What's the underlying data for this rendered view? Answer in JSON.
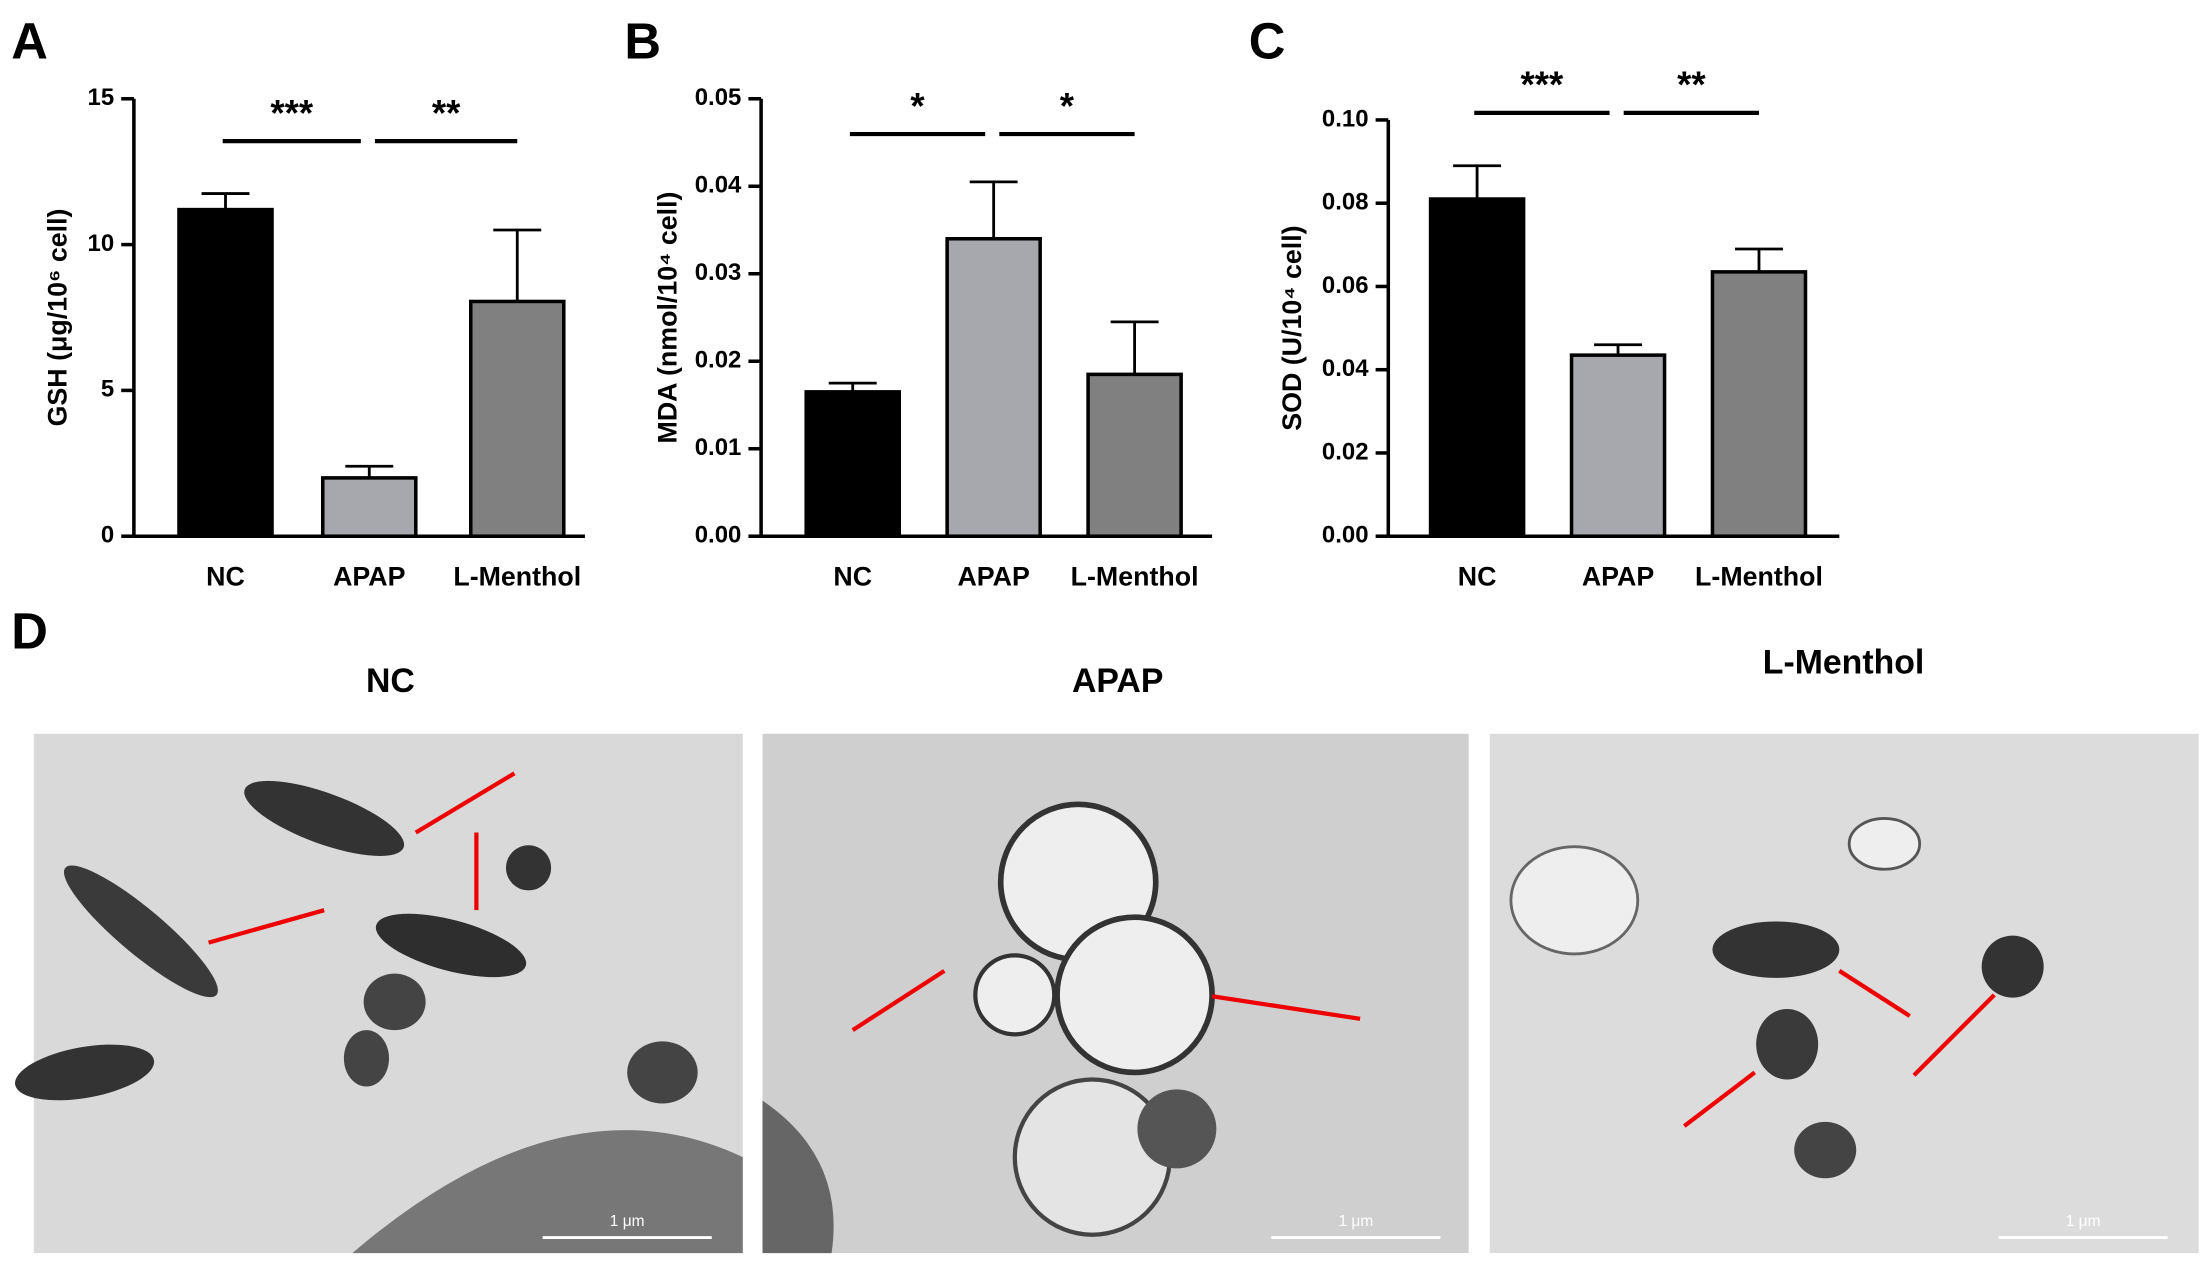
{
  "chart_data": [
    {
      "type": "bar",
      "panel": "A",
      "ylabel": "GSH (μg/10⁶ cell)",
      "categories": [
        "NC",
        "APAP",
        "L-Menthol"
      ],
      "values": [
        11.2,
        2.0,
        8.05
      ],
      "errors": [
        0.55,
        0.4,
        2.45
      ],
      "colors": [
        "#000000",
        "#a7a7ae",
        "#808080"
      ],
      "ylim": [
        0,
        15
      ],
      "yticks": [
        0,
        5,
        10,
        15
      ],
      "annotations": [
        {
          "text": "***",
          "span": [
            0,
            1
          ]
        },
        {
          "text": "**",
          "span": [
            1,
            2
          ]
        }
      ]
    },
    {
      "type": "bar",
      "panel": "B",
      "ylabel": "MDA (nmol/10⁴ cell)",
      "categories": [
        "NC",
        "APAP",
        "L-Menthol"
      ],
      "values": [
        0.0165,
        0.034,
        0.0185
      ],
      "errors": [
        0.001,
        0.0065,
        0.006
      ],
      "colors": [
        "#000000",
        "#a7a7ae",
        "#808080"
      ],
      "ylim": [
        0,
        0.05
      ],
      "yticks": [
        {
          "value": 0,
          "label": "0.00"
        },
        0.01,
        0.02,
        0.03,
        0.04,
        0.05
      ],
      "annotations": [
        {
          "text": "*",
          "span": [
            0,
            1
          ]
        },
        {
          "text": "*",
          "span": [
            1,
            2
          ]
        }
      ]
    },
    {
      "type": "bar",
      "panel": "C",
      "ylabel": "SOD (U/10⁴ cell)",
      "categories": [
        "NC",
        "APAP",
        "L-Menthol"
      ],
      "values": [
        0.081,
        0.0435,
        0.0635
      ],
      "errors": [
        0.008,
        0.0025,
        0.0055
      ],
      "colors": [
        "#000000",
        "#a7a7ae",
        "#808080"
      ],
      "ylim": [
        0,
        0.1
      ],
      "yticks": [
        {
          "value": 0,
          "label": "0.00"
        },
        0.02,
        0.04,
        0.06,
        0.08,
        {
          "value": 0.1,
          "label": "0.10"
        }
      ],
      "annotations": [
        {
          "text": "***",
          "span": [
            0,
            1
          ]
        },
        {
          "text": "**",
          "span": [
            1,
            2
          ]
        }
      ]
    }
  ],
  "panel_d": {
    "panel": "D",
    "images": [
      {
        "title": "NC",
        "scale_bar": "1 μm"
      },
      {
        "title": "APAP",
        "scale_bar": "1 μm"
      },
      {
        "title": "L-Menthol",
        "scale_bar": "1 μm"
      }
    ]
  }
}
